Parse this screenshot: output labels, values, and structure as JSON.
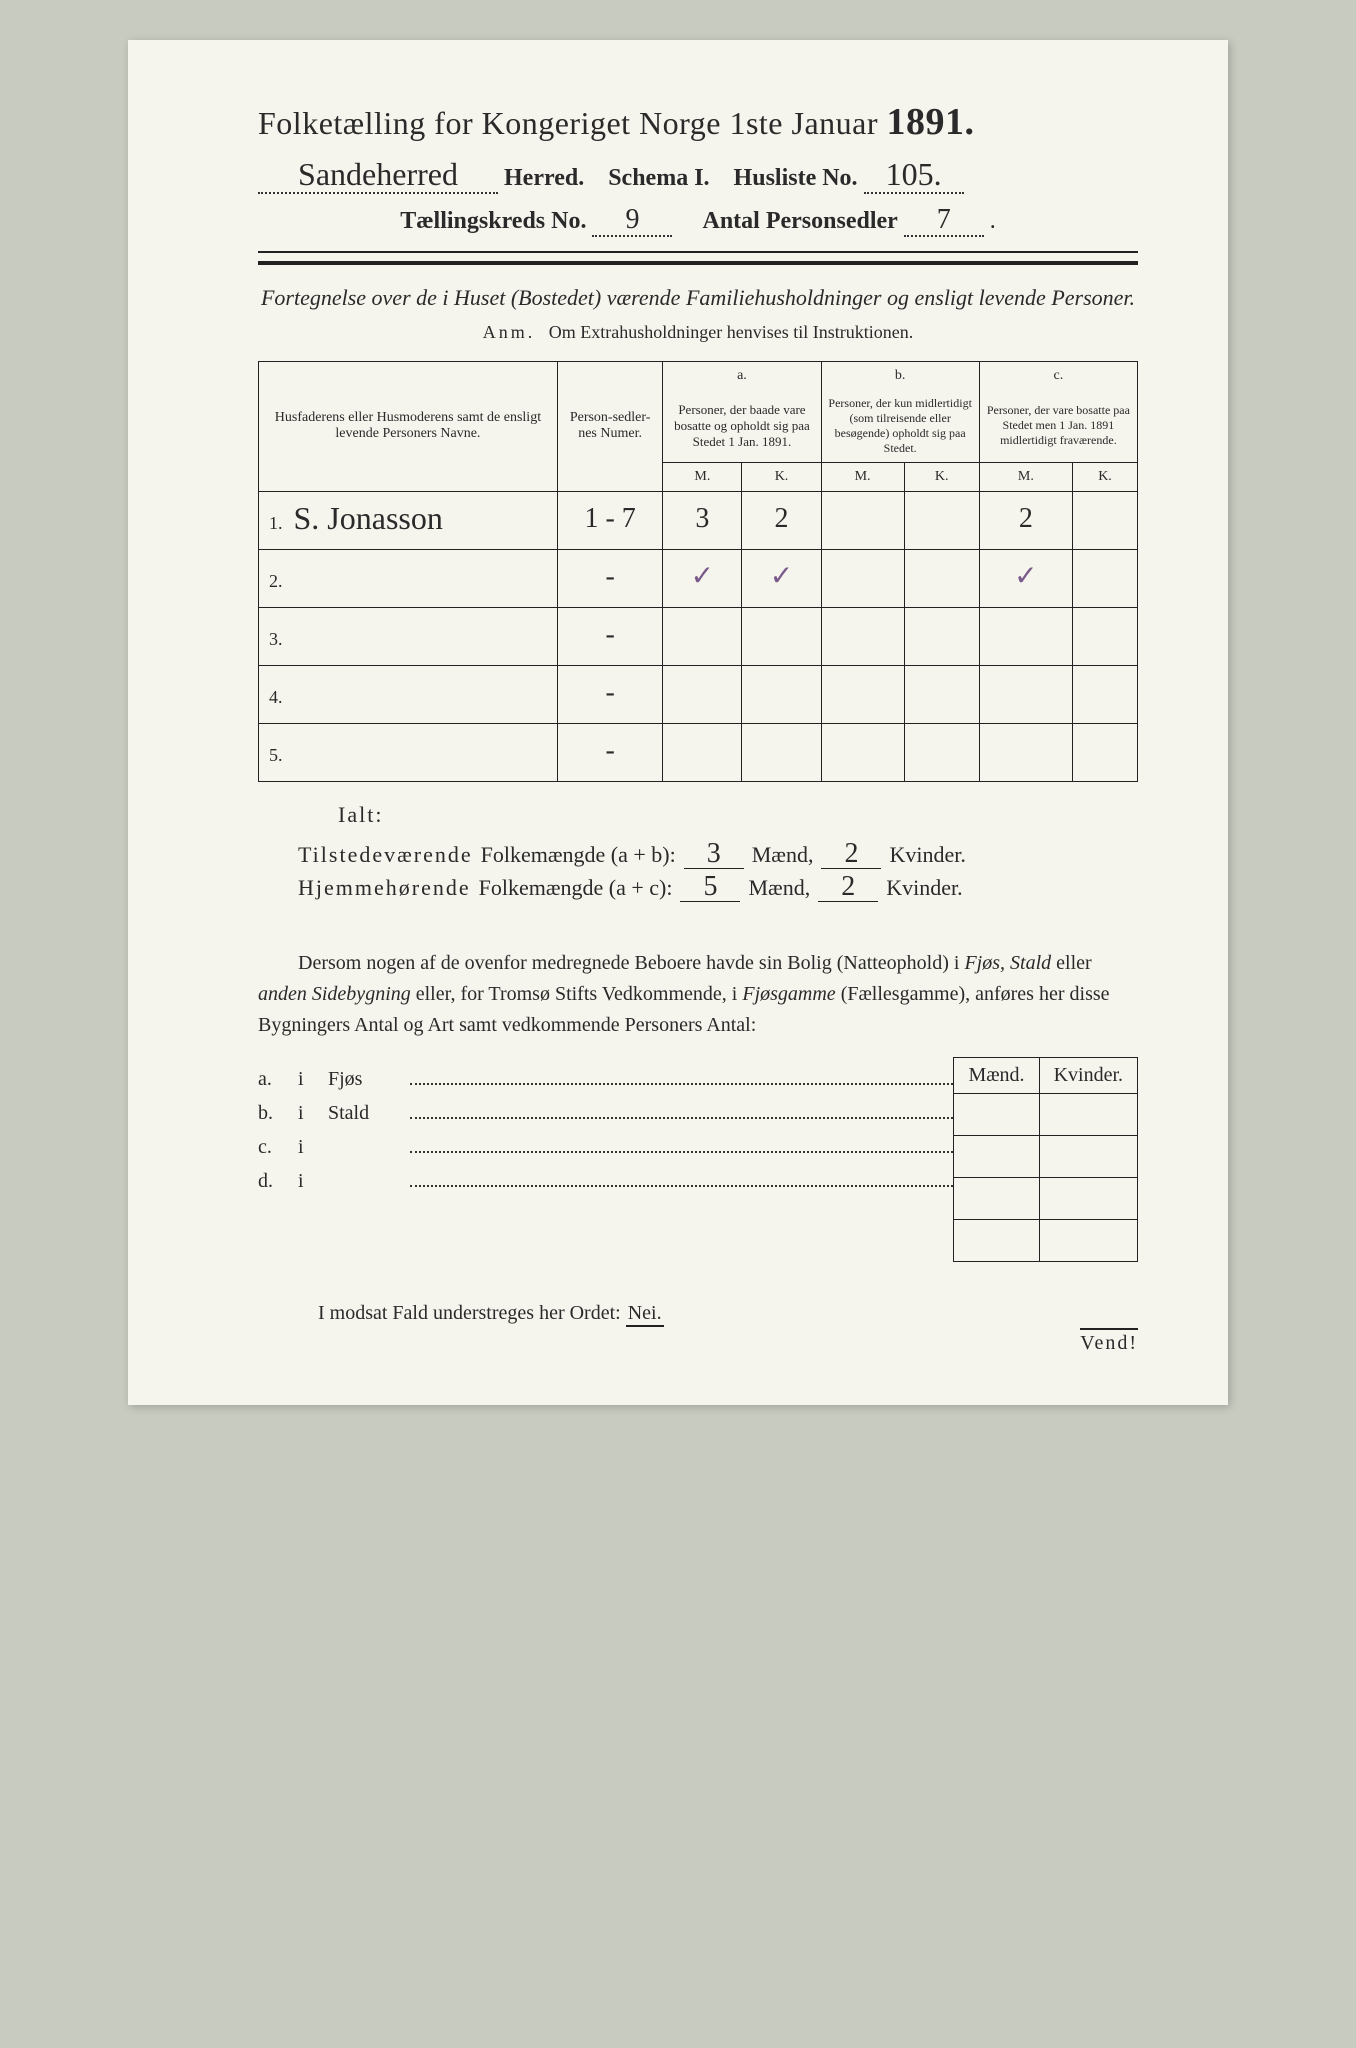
{
  "header": {
    "title_prefix": "Folketælling for Kongeriget Norge 1ste Januar",
    "year": "1891.",
    "herred_value": "Sandeherred",
    "herred_label": "Herred.",
    "schema_label": "Schema I.",
    "husliste_label": "Husliste No.",
    "husliste_value": "105.",
    "kreds_label": "Tællingskreds No.",
    "kreds_value": "9",
    "antal_label": "Antal Personsedler",
    "antal_value": "7"
  },
  "subtitle": "Fortegnelse over de i Huset (Bostedet) værende Familiehusholdninger og ensligt levende Personer.",
  "anm_label": "Anm.",
  "anm_text": "Om Extrahusholdninger henvises til Instruktionen.",
  "table": {
    "col_name": "Husfaderens eller Husmoderens samt de ensligt levende Personers Navne.",
    "col_num": "Person-sedler-nes Numer.",
    "col_a_head": "a.",
    "col_a": "Personer, der baade vare bosatte og opholdt sig paa Stedet 1 Jan. 1891.",
    "col_b_head": "b.",
    "col_b": "Personer, der kun midlertidigt (som tilreisende eller besøgende) opholdt sig paa Stedet.",
    "col_c_head": "c.",
    "col_c": "Personer, der vare bosatte paa Stedet men 1 Jan. 1891 midlertidigt fraværende.",
    "m": "M.",
    "k": "K.",
    "rows": [
      {
        "idx": "1.",
        "name": "S. Jonasson",
        "num": "1 - 7",
        "a_m": "3",
        "a_k": "2",
        "b_m": "",
        "b_k": "",
        "c_m": "2",
        "c_k": ""
      },
      {
        "idx": "2.",
        "name": "",
        "num": "-",
        "a_m": "✓",
        "a_k": "✓",
        "b_m": "",
        "b_k": "",
        "c_m": "✓",
        "c_k": ""
      },
      {
        "idx": "3.",
        "name": "",
        "num": "-",
        "a_m": "",
        "a_k": "",
        "b_m": "",
        "b_k": "",
        "c_m": "",
        "c_k": ""
      },
      {
        "idx": "4.",
        "name": "",
        "num": "-",
        "a_m": "",
        "a_k": "",
        "b_m": "",
        "b_k": "",
        "c_m": "",
        "c_k": ""
      },
      {
        "idx": "5.",
        "name": "",
        "num": "-",
        "a_m": "",
        "a_k": "",
        "b_m": "",
        "b_k": "",
        "c_m": "",
        "c_k": ""
      }
    ]
  },
  "totals": {
    "ialt": "Ialt:",
    "line1_label": "Tilstedeværende",
    "line1_rest": "Folkemængde (a + b):",
    "line2_label": "Hjemmehørende",
    "line2_rest": "Folkemængde (a + c):",
    "maend": "Mænd,",
    "kvinder": "Kvinder.",
    "ab_m": "3",
    "ab_k": "2",
    "ac_m": "5",
    "ac_k": "2"
  },
  "paragraph": "Dersom nogen af de ovenfor medregnede Beboere havde sin Bolig (Natteophold) i Fjøs, Stald eller anden Sidebygning eller, for Tromsø Stifts Vedkommende, i Fjøsgamme (Fællesgamme), anføres her disse Bygningers Antal og Art samt vedkommende Personers Antal:",
  "buildings": {
    "maend": "Mænd.",
    "kvinder": "Kvinder.",
    "rows": [
      {
        "lbl": "a.",
        "i": "i",
        "type": "Fjøs"
      },
      {
        "lbl": "b.",
        "i": "i",
        "type": "Stald"
      },
      {
        "lbl": "c.",
        "i": "i",
        "type": ""
      },
      {
        "lbl": "d.",
        "i": "i",
        "type": ""
      }
    ]
  },
  "footer": {
    "text_pre": "I modsat Fald understreges her Ordet:",
    "nei": "Nei.",
    "vend": "Vend!"
  },
  "colors": {
    "paper": "#f5f4ed",
    "ink": "#2a2a2a",
    "bg": "#c8cbc0",
    "purple_ink": "#7a5a8a"
  }
}
